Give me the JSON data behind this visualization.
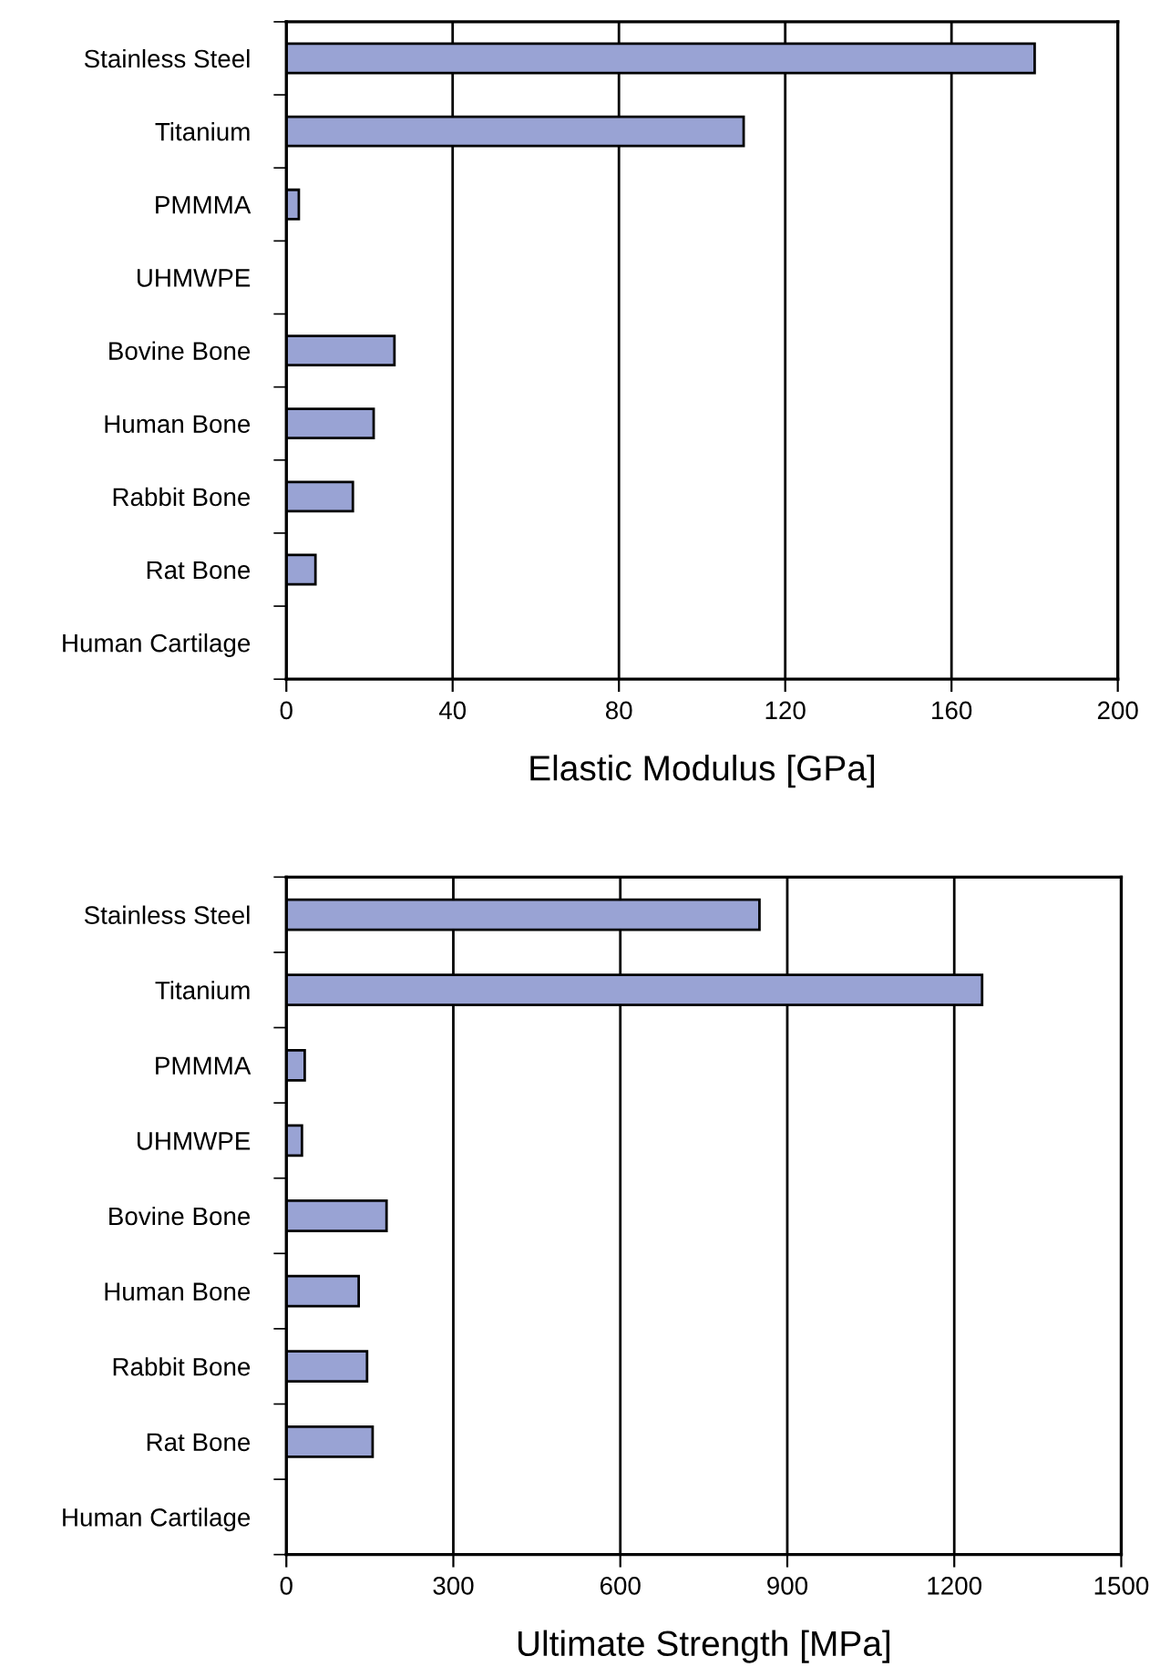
{
  "chart_data": [
    {
      "type": "bar",
      "orientation": "horizontal",
      "xlabel": "Elastic Modulus [GPa]",
      "categories": [
        "Stainless Steel",
        "Titanium",
        "PMMMA",
        "UHMWPE",
        "Bovine Bone",
        "Human Bone",
        "Rabbit Bone",
        "Rat Bone",
        "Human Cartilage"
      ],
      "values": [
        180,
        110,
        3,
        null,
        26,
        21,
        16,
        7,
        null
      ],
      "color": "#99a3d4",
      "xlim": [
        0,
        200
      ],
      "xticks": [
        0,
        40,
        80,
        120,
        160,
        200
      ],
      "grid": "x"
    },
    {
      "type": "bar",
      "orientation": "horizontal",
      "xlabel": "Ultimate Strength [MPa]",
      "categories": [
        "Stainless Steel",
        "Titanium",
        "PMMMA",
        "UHMWPE",
        "Bovine Bone",
        "Human Bone",
        "Rabbit Bone",
        "Rat Bone",
        "Human Cartilage"
      ],
      "values": [
        850,
        1250,
        33,
        28,
        180,
        130,
        145,
        155,
        null
      ],
      "color": "#99a3d4",
      "xlim": [
        0,
        1500
      ],
      "xticks": [
        0,
        300,
        600,
        900,
        1200,
        1500
      ],
      "grid": "x"
    }
  ]
}
